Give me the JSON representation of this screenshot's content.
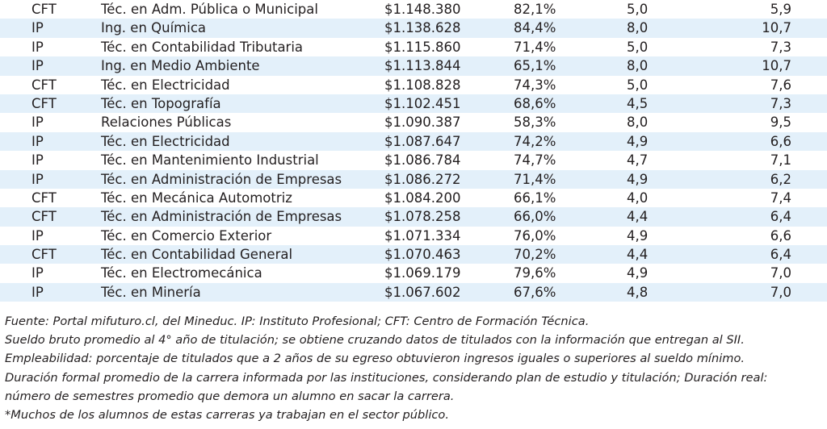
{
  "rows": [
    {
      "inst": "CFT",
      "career": "Téc. en Adm. Pública o Municipal",
      "salary": "$1.148.380",
      "employability": "82,1%",
      "formal_duration": "5,0",
      "real_duration": "5,9"
    },
    {
      "inst": "IP",
      "career": "Ing. en Química",
      "salary": "$1.138.628",
      "employability": "84,4%",
      "formal_duration": "8,0",
      "real_duration": "10,7"
    },
    {
      "inst": "IP",
      "career": "Téc. en Contabilidad Tributaria",
      "salary": "$1.115.860",
      "employability": "71,4%",
      "formal_duration": "5,0",
      "real_duration": "7,3"
    },
    {
      "inst": "IP",
      "career": "Ing. en Medio Ambiente",
      "salary": "$1.113.844",
      "employability": "65,1%",
      "formal_duration": "8,0",
      "real_duration": "10,7"
    },
    {
      "inst": "CFT",
      "career": "Téc. en Electricidad",
      "salary": "$1.108.828",
      "employability": "74,3%",
      "formal_duration": "5,0",
      "real_duration": "7,6"
    },
    {
      "inst": "CFT",
      "career": "Téc. en Topografía",
      "salary": "$1.102.451",
      "employability": "68,6%",
      "formal_duration": "4,5",
      "real_duration": "7,3"
    },
    {
      "inst": "IP",
      "career": "Relaciones Públicas",
      "salary": "$1.090.387",
      "employability": "58,3%",
      "formal_duration": "8,0",
      "real_duration": "9,5"
    },
    {
      "inst": "IP",
      "career": "Téc. en Electricidad",
      "salary": "$1.087.647",
      "employability": "74,2%",
      "formal_duration": "4,9",
      "real_duration": "6,6"
    },
    {
      "inst": "IP",
      "career": "Téc. en Mantenimiento Industrial",
      "salary": "$1.086.784",
      "employability": "74,7%",
      "formal_duration": "4,7",
      "real_duration": "7,1"
    },
    {
      "inst": "IP",
      "career": "Téc. en Administración de Empresas",
      "salary": "$1.086.272",
      "employability": "71,4%",
      "formal_duration": "4,9",
      "real_duration": "6,2"
    },
    {
      "inst": "CFT",
      "career": "Téc. en Mecánica Automotriz",
      "salary": "$1.084.200",
      "employability": "66,1%",
      "formal_duration": "4,0",
      "real_duration": "7,4"
    },
    {
      "inst": "CFT",
      "career": "Téc. en Administración de Empresas",
      "salary": "$1.078.258",
      "employability": "66,0%",
      "formal_duration": "4,4",
      "real_duration": "6,4"
    },
    {
      "inst": "IP",
      "career": "Téc. en Comercio Exterior",
      "salary": "$1.071.334",
      "employability": "76,0%",
      "formal_duration": "4,9",
      "real_duration": "6,6"
    },
    {
      "inst": "CFT",
      "career": "Téc. en Contabilidad General",
      "salary": "$1.070.463",
      "employability": "70,2%",
      "formal_duration": "4,4",
      "real_duration": "6,4"
    },
    {
      "inst": "IP",
      "career": "Téc. en Electromecánica",
      "salary": "$1.069.179",
      "employability": "79,6%",
      "formal_duration": "4,9",
      "real_duration": "7,0"
    },
    {
      "inst": "IP",
      "career": "Téc. en Minería",
      "salary": "$1.067.602",
      "employability": "67,6%",
      "formal_duration": "4,8",
      "real_duration": "7,0"
    }
  ],
  "notes": [
    "Fuente: Portal mifuturo.cl, del Mineduc. IP: Instituto Profesional; CFT: Centro de Formación Técnica.",
    "Sueldo bruto promedio al 4° año de titulación; se obtiene cruzando datos de titulados con la información que entregan al SII.",
    "Empleabilidad: porcentaje de titulados que a 2 años de su egreso obtuvieron ingresos iguales o superiores al sueldo mínimo.",
    "Duración formal promedio de la carrera informada por las instituciones, considerando plan de estudio y titulación; Duración real:",
    "número de semestres promedio que demora un alumno en sacar la carrera.",
    "*Muchos de los alumnos de estas carreras ya trabajan en el sector público."
  ],
  "colors": {
    "row_shade": "#e3f0fa",
    "text": "#231f20"
  }
}
